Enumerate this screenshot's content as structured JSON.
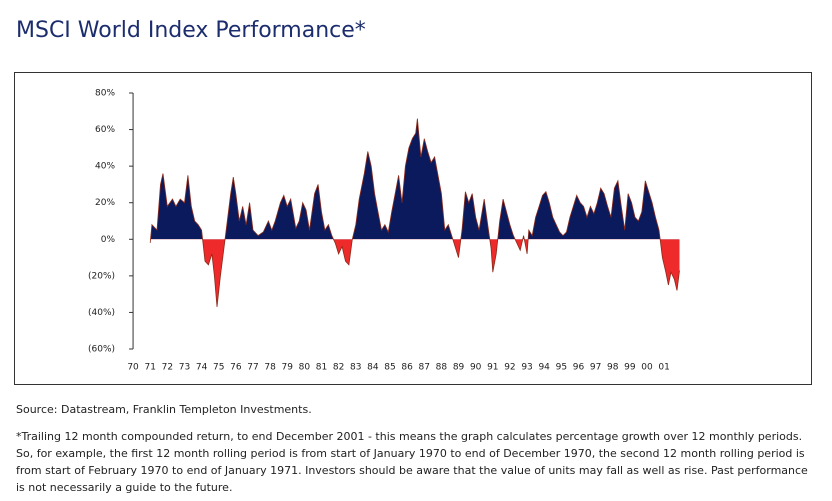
{
  "header": {
    "title": "MSCI World Index Performance*"
  },
  "chart_data": {
    "type": "area",
    "x": [
      1971.0,
      1971.1,
      1971.4,
      1971.6,
      1971.75,
      1972.0,
      1972.3,
      1972.5,
      1972.75,
      1973.0,
      1973.2,
      1973.4,
      1973.6,
      1973.8,
      1974.0,
      1974.2,
      1974.4,
      1974.6,
      1974.75,
      1974.9,
      1975.1,
      1975.3,
      1975.5,
      1975.7,
      1975.85,
      1976.0,
      1976.2,
      1976.4,
      1976.6,
      1976.8,
      1977.0,
      1977.3,
      1977.6,
      1977.9,
      1978.1,
      1978.3,
      1978.6,
      1978.8,
      1979.0,
      1979.2,
      1979.5,
      1979.7,
      1979.9,
      1980.1,
      1980.3,
      1980.6,
      1980.8,
      1981.0,
      1981.2,
      1981.4,
      1981.6,
      1981.8,
      1982.0,
      1982.2,
      1982.4,
      1982.6,
      1982.8,
      1983.0,
      1983.2,
      1983.5,
      1983.7,
      1983.9,
      1984.1,
      1984.3,
      1984.5,
      1984.7,
      1984.9,
      1985.1,
      1985.3,
      1985.5,
      1985.7,
      1985.9,
      1986.1,
      1986.3,
      1986.5,
      1986.6,
      1986.8,
      1987.0,
      1987.2,
      1987.4,
      1987.6,
      1987.8,
      1988.0,
      1988.2,
      1988.4,
      1988.6,
      1988.8,
      1989.0,
      1989.2,
      1989.4,
      1989.6,
      1989.8,
      1990.0,
      1990.2,
      1990.5,
      1990.7,
      1990.9,
      1991.0,
      1991.2,
      1991.4,
      1991.6,
      1991.8,
      1992.0,
      1992.2,
      1992.4,
      1992.6,
      1992.8,
      1993.0,
      1993.1,
      1993.3,
      1993.5,
      1993.7,
      1993.9,
      1994.1,
      1994.3,
      1994.5,
      1994.7,
      1994.9,
      1995.1,
      1995.3,
      1995.5,
      1995.7,
      1995.9,
      1996.1,
      1996.3,
      1996.5,
      1996.7,
      1996.9,
      1997.1,
      1997.3,
      1997.5,
      1997.7,
      1997.9,
      1998.1,
      1998.3,
      1998.5,
      1998.7,
      1998.9,
      1999.1,
      1999.3,
      1999.5,
      1999.7,
      1999.9,
      2000.1,
      2000.3,
      2000.5,
      2000.7,
      2000.9,
      2001.1,
      2001.25,
      2001.4,
      2001.6,
      2001.75,
      2001.9
    ],
    "values": [
      -2,
      8,
      5,
      30,
      36,
      18,
      22,
      18,
      22,
      20,
      35,
      18,
      10,
      8,
      5,
      -12,
      -14,
      -8,
      -20,
      -37,
      -20,
      -5,
      10,
      25,
      34,
      25,
      10,
      18,
      8,
      20,
      5,
      2,
      4,
      10,
      5,
      10,
      20,
      24,
      18,
      22,
      6,
      10,
      20,
      16,
      5,
      25,
      30,
      15,
      5,
      8,
      2,
      -2,
      -8,
      -4,
      -12,
      -14,
      0,
      8,
      22,
      36,
      48,
      40,
      25,
      15,
      5,
      8,
      4,
      15,
      25,
      35,
      20,
      40,
      50,
      55,
      58,
      66,
      45,
      55,
      48,
      42,
      45,
      35,
      25,
      5,
      8,
      2,
      -4,
      -10,
      5,
      26,
      20,
      25,
      12,
      5,
      22,
      8,
      -5,
      -18,
      -8,
      10,
      22,
      15,
      8,
      2,
      -2,
      -6,
      2,
      -8,
      5,
      2,
      12,
      18,
      24,
      26,
      20,
      12,
      8,
      4,
      2,
      4,
      12,
      18,
      24,
      20,
      18,
      12,
      18,
      14,
      20,
      28,
      25,
      18,
      12,
      28,
      32,
      18,
      5,
      25,
      20,
      12,
      10,
      15,
      32,
      26,
      20,
      12,
      5,
      -10,
      -18,
      -25,
      -18,
      -22,
      -28,
      -17
    ],
    "positive_color": "#0a1a5c",
    "negative_color": "#ee2a2a",
    "line_color": "#8b2a1a",
    "xlim": [
      1969.5,
      2002.5
    ],
    "xticks": [
      {
        "value": 1970,
        "label": "70"
      },
      {
        "value": 1971,
        "label": "71"
      },
      {
        "value": 1972,
        "label": "72"
      },
      {
        "value": 1973,
        "label": "73"
      },
      {
        "value": 1974,
        "label": "74"
      },
      {
        "value": 1975,
        "label": "75"
      },
      {
        "value": 1976,
        "label": "76"
      },
      {
        "value": 1977,
        "label": "77"
      },
      {
        "value": 1978,
        "label": "78"
      },
      {
        "value": 1979,
        "label": "79"
      },
      {
        "value": 1980,
        "label": "80"
      },
      {
        "value": 1981,
        "label": "81"
      },
      {
        "value": 1982,
        "label": "82"
      },
      {
        "value": 1983,
        "label": "83"
      },
      {
        "value": 1984,
        "label": "84"
      },
      {
        "value": 1985,
        "label": "85"
      },
      {
        "value": 1986,
        "label": "86"
      },
      {
        "value": 1987,
        "label": "87"
      },
      {
        "value": 1988,
        "label": "88"
      },
      {
        "value": 1989,
        "label": "89"
      },
      {
        "value": 1990,
        "label": "90"
      },
      {
        "value": 1991,
        "label": "91"
      },
      {
        "value": 1992,
        "label": "92"
      },
      {
        "value": 1993,
        "label": "93"
      },
      {
        "value": 1994,
        "label": "94"
      },
      {
        "value": 1995,
        "label": "95"
      },
      {
        "value": 1996,
        "label": "96"
      },
      {
        "value": 1997,
        "label": "97"
      },
      {
        "value": 1998,
        "label": "98"
      },
      {
        "value": 1999,
        "label": "99"
      },
      {
        "value": 2000,
        "label": "00"
      },
      {
        "value": 2001,
        "label": "01"
      }
    ],
    "ylim": [
      -60,
      80
    ],
    "yticks": [
      {
        "value": 80,
        "label": "80%"
      },
      {
        "value": 60,
        "label": "60%"
      },
      {
        "value": 40,
        "label": "40%"
      },
      {
        "value": 20,
        "label": "20%"
      },
      {
        "value": 0,
        "label": "0%"
      },
      {
        "value": -20,
        "label": "(20%)"
      },
      {
        "value": -40,
        "label": "(40%)"
      },
      {
        "value": -60,
        "label": "(60%)"
      }
    ]
  },
  "source": "Source: Datastream, Franklin Templeton Investments.",
  "footnote": "*Trailing 12 month compounded return, to end December 2001 - this means the graph calculates percentage growth over 12 monthly periods. So, for example, the first 12 month rolling period is from start of January 1970 to end of December 1970, the second 12 month rolling period is from start of February 1970 to end of January 1971. Investors should be aware that the value of units may fall as well as rise. Past performance is not necessarily a guide to the future."
}
